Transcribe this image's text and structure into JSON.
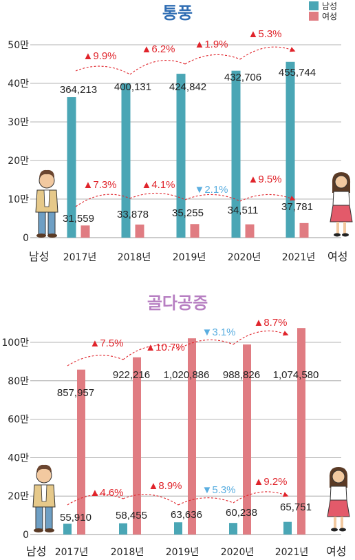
{
  "colors": {
    "male": "#4aa6b5",
    "female": "#e07c82",
    "up": "#e0242b",
    "down": "#5aaee0",
    "title1": "#2f6db3",
    "title2": "#b77fc2",
    "grid": "#9a9a9a"
  },
  "legend": {
    "male": "남성",
    "female": "여성"
  },
  "labels": {
    "left": "남성",
    "right": "여성"
  },
  "icons": {
    "male": "man-figure-icon",
    "female": "woman-figure-icon"
  },
  "chart_data": [
    {
      "type": "bar",
      "title": "통풍",
      "categories": [
        "2017년",
        "2018년",
        "2019년",
        "2020년",
        "2021년"
      ],
      "yticks": [
        "0",
        "10만",
        "20만",
        "30만",
        "40만",
        "50만"
      ],
      "ylim": [
        0,
        500000
      ],
      "grid": true,
      "legend_position": "top-right",
      "series": [
        {
          "name": "남성",
          "values": [
            364213,
            400131,
            424842,
            432706,
            455744
          ],
          "labels": [
            "364,213",
            "400,131",
            "424,842",
            "432,706",
            "455,744"
          ],
          "changes": [
            "▲9.9%",
            "▲6.2%",
            "▲1.9%",
            "▲5.3%"
          ]
        },
        {
          "name": "여성",
          "values": [
            31559,
            33878,
            35255,
            34511,
            37781
          ],
          "labels": [
            "31,559",
            "33,878",
            "35,255",
            "34,511",
            "37,781"
          ],
          "changes": [
            "▲7.3%",
            "▲4.1%",
            "▼2.1%",
            "▲9.5%"
          ]
        }
      ]
    },
    {
      "type": "bar",
      "title": "골다공증",
      "categories": [
        "2017년",
        "2018년",
        "2019년",
        "2020년",
        "2021년"
      ],
      "yticks": [
        "0",
        "20만",
        "40만",
        "60만",
        "80만",
        "100만"
      ],
      "ylim": [
        0,
        1000000
      ],
      "grid": true,
      "series": [
        {
          "name": "남성",
          "values": [
            55910,
            58455,
            63636,
            60238,
            65751
          ],
          "labels": [
            "55,910",
            "58,455",
            "63,636",
            "60,238",
            "65,751"
          ],
          "changes": [
            "▲4.6%",
            "▲8.9%",
            "▼5.3%",
            "▲9.2%"
          ]
        },
        {
          "name": "여성",
          "values": [
            857957,
            922216,
            1020886,
            988826,
            1074580
          ],
          "labels": [
            "857,957",
            "922,216",
            "1,020,886",
            "988,826",
            "1,074,580"
          ],
          "changes": [
            "▲7.5%",
            "▲10.7%",
            "▼3.1%",
            "▲8.7%"
          ]
        }
      ]
    }
  ]
}
